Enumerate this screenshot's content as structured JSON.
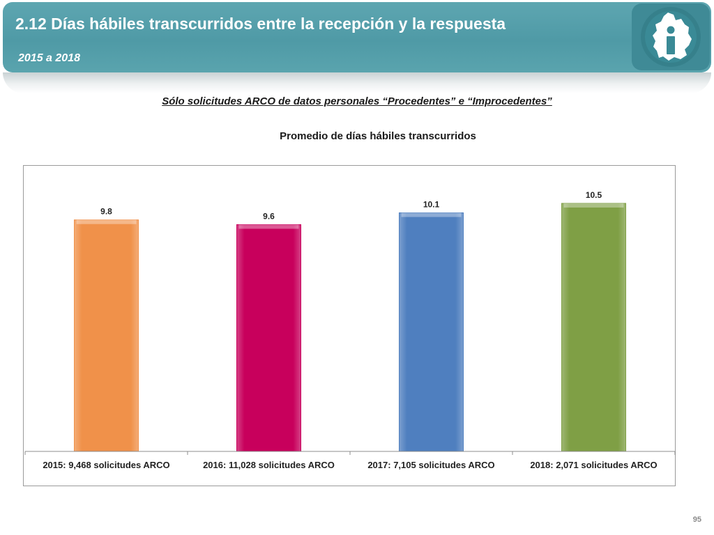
{
  "header": {
    "title": "2.12 Días hábiles transcurridos entre la recepción y la respuesta",
    "subtitle": "2015 a 2018",
    "logo_icon": "info-institute-logo-icon"
  },
  "headline": "Sólo solicitudes ARCO de datos personales “Procedentes” e “Improcedentes”",
  "chart_data": {
    "type": "bar",
    "title": "Promedio de días hábiles transcurridos",
    "xlabel": "",
    "ylabel": "",
    "categories": [
      "2015: 9,468 solicitudes ARCO",
      "2016: 11,028 solicitudes ARCO",
      "2017:  7,105 solicitudes ARCO",
      "2018:  2,071 solicitudes ARCO"
    ],
    "values": [
      9.8,
      9.6,
      10.1,
      10.5
    ],
    "value_labels": [
      "9.8",
      "9.6",
      "10.1",
      "10.5"
    ],
    "colors": [
      "#f0914a",
      "#c8005c",
      "#4f7fbf",
      "#7f9f45"
    ],
    "ylim": [
      0,
      11.5
    ],
    "grid": false,
    "legend": "none"
  },
  "footer": {
    "page_number": "95"
  }
}
